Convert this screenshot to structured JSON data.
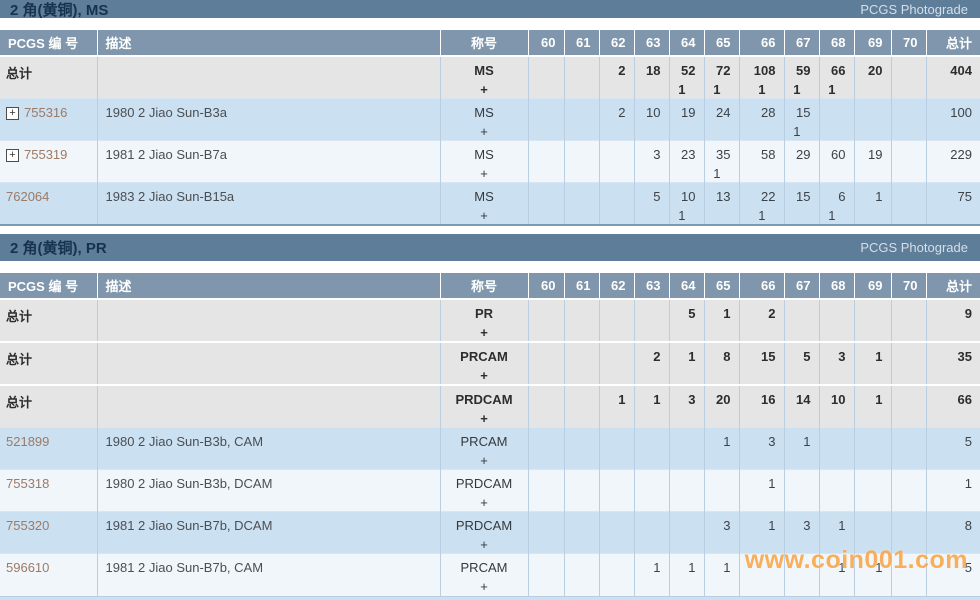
{
  "brand": "PCGS Photograde",
  "watermark": "www.coin001.com",
  "plus_label": "+",
  "expand_icon_glyph": "+",
  "colors": {
    "section_bar": "#5e7d98",
    "header_bg": "#7f96ac",
    "row_blue": "#cbe0f1",
    "row_light": "#f1f6fa",
    "row_total": "#e5e5e5",
    "pcgs_number_link": "#9c7a66",
    "watermark_orange": "#f8a13e"
  },
  "columns": {
    "pcgs": "PCGS 编 号",
    "desc": "描述",
    "designation": "称号",
    "grades": [
      "60",
      "61",
      "62",
      "63",
      "64",
      "65",
      "66",
      "67",
      "68",
      "69",
      "70"
    ],
    "total": "总计"
  },
  "sections": [
    {
      "title": "2 角(黄铜), MS",
      "brand": "PCGS Photograde",
      "rows": [
        {
          "type": "total",
          "label": "总计",
          "desc": "",
          "designation": "MS",
          "shade": "total",
          "expandable": false,
          "values": [
            "",
            "",
            "2",
            "18",
            "52",
            "72",
            "108",
            "59",
            "66",
            "20",
            ""
          ],
          "plus": [
            "",
            "",
            "",
            "",
            "1",
            "1",
            "1",
            "1",
            "1",
            "",
            ""
          ],
          "total": "404"
        },
        {
          "type": "item",
          "number": "755316",
          "desc": "1980 2 Jiao Sun-B3a",
          "designation": "MS",
          "shade": "blue",
          "expandable": true,
          "values": [
            "",
            "",
            "2",
            "10",
            "19",
            "24",
            "28",
            "15",
            "",
            "",
            ""
          ],
          "plus": [
            "",
            "",
            "",
            "",
            "",
            "",
            "",
            "1",
            "",
            "",
            ""
          ],
          "total": "100"
        },
        {
          "type": "item",
          "number": "755319",
          "desc": "1981 2 Jiao Sun-B7a",
          "designation": "MS",
          "shade": "light",
          "expandable": true,
          "values": [
            "",
            "",
            "",
            "3",
            "23",
            "35",
            "58",
            "29",
            "60",
            "19",
            ""
          ],
          "plus": [
            "",
            "",
            "",
            "",
            "",
            "1",
            "",
            "",
            "",
            "",
            ""
          ],
          "total": "229"
        },
        {
          "type": "item",
          "number": "762064",
          "desc": "1983 2 Jiao Sun-B15a",
          "designation": "MS",
          "shade": "blue",
          "expandable": false,
          "values": [
            "",
            "",
            "",
            "5",
            "10",
            "13",
            "22",
            "15",
            "6",
            "1",
            ""
          ],
          "plus": [
            "",
            "",
            "",
            "",
            "1",
            "",
            "1",
            "",
            "1",
            "",
            ""
          ],
          "total": "75"
        }
      ]
    },
    {
      "title": "2 角(黄铜), PR",
      "brand": "PCGS Photograde",
      "rows": [
        {
          "type": "total",
          "label": "总计",
          "desc": "",
          "designation": "PR",
          "shade": "total",
          "expandable": false,
          "values": [
            "",
            "",
            "",
            "",
            "5",
            "1",
            "2",
            "",
            "",
            "",
            ""
          ],
          "plus": [
            "",
            "",
            "",
            "",
            "",
            "",
            "",
            "",
            "",
            "",
            ""
          ],
          "total": "9"
        },
        {
          "type": "total",
          "label": "总计",
          "desc": "",
          "designation": "PRCAM",
          "shade": "total",
          "expandable": false,
          "values": [
            "",
            "",
            "",
            "2",
            "1",
            "8",
            "15",
            "5",
            "3",
            "1",
            ""
          ],
          "plus": [
            "",
            "",
            "",
            "",
            "",
            "",
            "",
            "",
            "",
            "",
            ""
          ],
          "total": "35"
        },
        {
          "type": "total",
          "label": "总计",
          "desc": "",
          "designation": "PRDCAM",
          "shade": "total",
          "expandable": false,
          "values": [
            "",
            "",
            "1",
            "1",
            "3",
            "20",
            "16",
            "14",
            "10",
            "1",
            ""
          ],
          "plus": [
            "",
            "",
            "",
            "",
            "",
            "",
            "",
            "",
            "",
            "",
            ""
          ],
          "total": "66"
        },
        {
          "type": "item",
          "number": "521899",
          "desc": "1980 2 Jiao Sun-B3b, CAM",
          "designation": "PRCAM",
          "shade": "blue",
          "expandable": false,
          "values": [
            "",
            "",
            "",
            "",
            "",
            "1",
            "3",
            "1",
            "",
            "",
            ""
          ],
          "plus": [
            "",
            "",
            "",
            "",
            "",
            "",
            "",
            "",
            "",
            "",
            ""
          ],
          "total": "5"
        },
        {
          "type": "item",
          "number": "755318",
          "desc": "1980 2 Jiao Sun-B3b, DCAM",
          "designation": "PRDCAM",
          "shade": "light",
          "expandable": false,
          "values": [
            "",
            "",
            "",
            "",
            "",
            "",
            "1",
            "",
            "",
            "",
            ""
          ],
          "plus": [
            "",
            "",
            "",
            "",
            "",
            "",
            "",
            "",
            "",
            "",
            ""
          ],
          "total": "1"
        },
        {
          "type": "item",
          "number": "755320",
          "desc": "1981 2 Jiao Sun-B7b, DCAM",
          "designation": "PRDCAM",
          "shade": "blue",
          "expandable": false,
          "values": [
            "",
            "",
            "",
            "",
            "",
            "3",
            "1",
            "3",
            "1",
            "",
            ""
          ],
          "plus": [
            "",
            "",
            "",
            "",
            "",
            "",
            "",
            "",
            "",
            "",
            ""
          ],
          "total": "8"
        },
        {
          "type": "item",
          "number": "596610",
          "desc": "1981 2 Jiao Sun-B7b, CAM",
          "designation": "PRCAM",
          "shade": "light",
          "expandable": false,
          "values": [
            "",
            "",
            "",
            "1",
            "1",
            "1",
            "",
            "",
            "1",
            "1",
            ""
          ],
          "plus": [
            "",
            "",
            "",
            "",
            "",
            "",
            "",
            "",
            "",
            "",
            ""
          ],
          "total": "5"
        }
      ]
    }
  ]
}
